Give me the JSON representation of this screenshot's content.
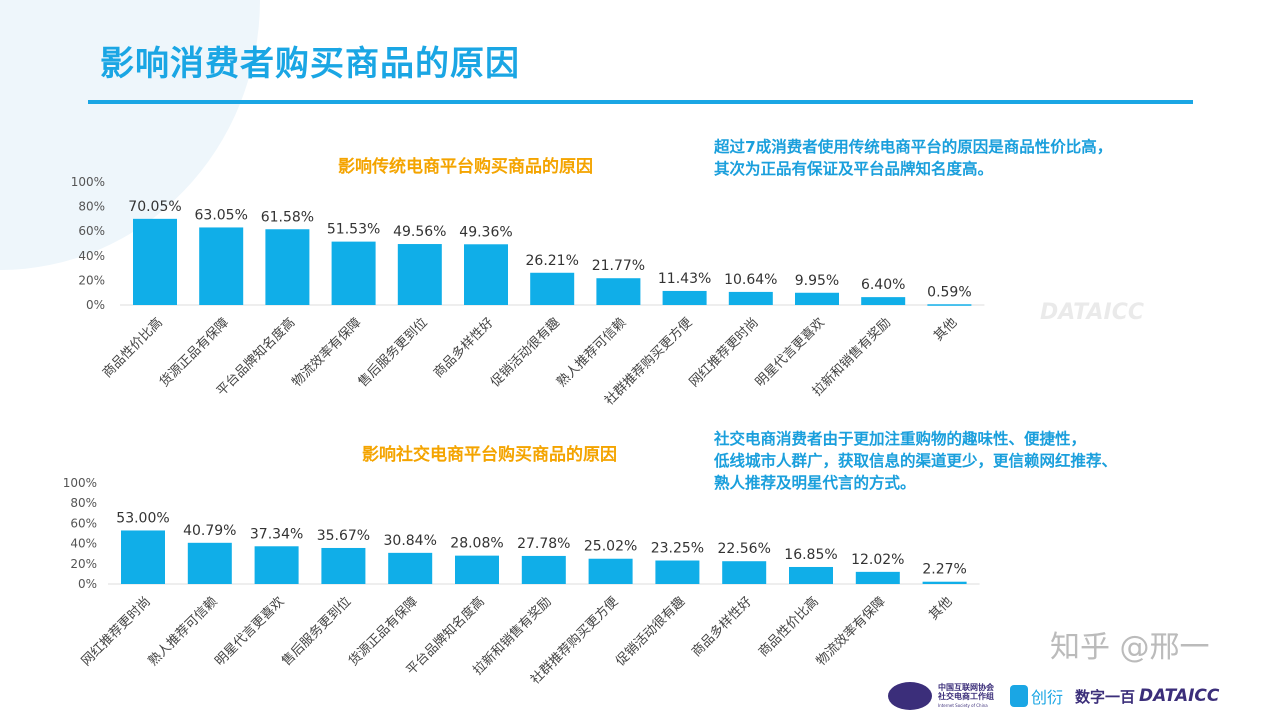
{
  "title": "影响消费者购买商品的原因",
  "watermark": "DATAICC",
  "notes": {
    "top": [
      "超过7成消费者使用传统电商平台的原因是商品性价比高，",
      "其次为正品有保证及平台品牌知名度高。"
    ],
    "bottom": [
      "社交电商消费者由于更加注重购物的趣味性、便捷性，",
      "低线城市人群广，获取信息的渠道更少，更信赖网红推荐、",
      "熟人推荐及明星代言的方式。"
    ]
  },
  "footer": {
    "logo1_lines": [
      "中国互联网协会",
      "社交电商工作组",
      "Internet Society of China"
    ],
    "logo2": "创衍",
    "logo3": "数字一百",
    "logo4": "DATAICC",
    "zhihu": "知乎 @邢一"
  },
  "colors": {
    "bar": "#10aee8",
    "title": "#1aa6e4",
    "accent": "#f4a400"
  },
  "chart_data": [
    {
      "type": "bar",
      "title": "影响传统电商平台购买商品的原因",
      "categories": [
        "商品性价比高",
        "货源正品有保障",
        "平台品牌知名度高",
        "物流效率有保障",
        "售后服务更到位",
        "商品多样性好",
        "促销活动很有趣",
        "熟人推荐可信赖",
        "社群推荐购买更方便",
        "网红推荐更时尚",
        "明星代言更喜欢",
        "拉新和销售有奖励",
        "其他"
      ],
      "values": [
        70.05,
        63.05,
        61.58,
        51.53,
        49.56,
        49.36,
        26.21,
        21.77,
        11.43,
        10.64,
        9.95,
        6.4,
        0.59
      ],
      "labels": [
        "70.05%",
        "63.05%",
        "61.58%",
        "51.53%",
        "49.56%",
        "49.36%",
        "26.21%",
        "21.77%",
        "11.43%",
        "10.64%",
        "9.95%",
        "6.40%",
        "0.59%"
      ],
      "yticks": [
        "0%",
        "20%",
        "40%",
        "60%",
        "80%",
        "100%"
      ],
      "ylim": [
        0,
        100
      ]
    },
    {
      "type": "bar",
      "title": "影响社交电商平台购买商品的原因",
      "categories": [
        "网红推荐更时尚",
        "熟人推荐可信赖",
        "明星代言更喜欢",
        "售后服务更到位",
        "货源正品有保障",
        "平台品牌知名度高",
        "拉新和销售有奖励",
        "社群推荐购买更方便",
        "促销活动很有趣",
        "商品多样性好",
        "商品性价比高",
        "物流效率有保障",
        "其他"
      ],
      "values": [
        53.0,
        40.79,
        37.34,
        35.67,
        30.84,
        28.08,
        27.78,
        25.02,
        23.25,
        22.56,
        16.85,
        12.02,
        2.27
      ],
      "labels": [
        "53.00%",
        "40.79%",
        "37.34%",
        "35.67%",
        "30.84%",
        "28.08%",
        "27.78%",
        "25.02%",
        "23.25%",
        "22.56%",
        "16.85%",
        "12.02%",
        "2.27%"
      ],
      "yticks": [
        "0%",
        "20%",
        "40%",
        "60%",
        "80%",
        "100%"
      ],
      "ylim": [
        0,
        100
      ]
    }
  ]
}
